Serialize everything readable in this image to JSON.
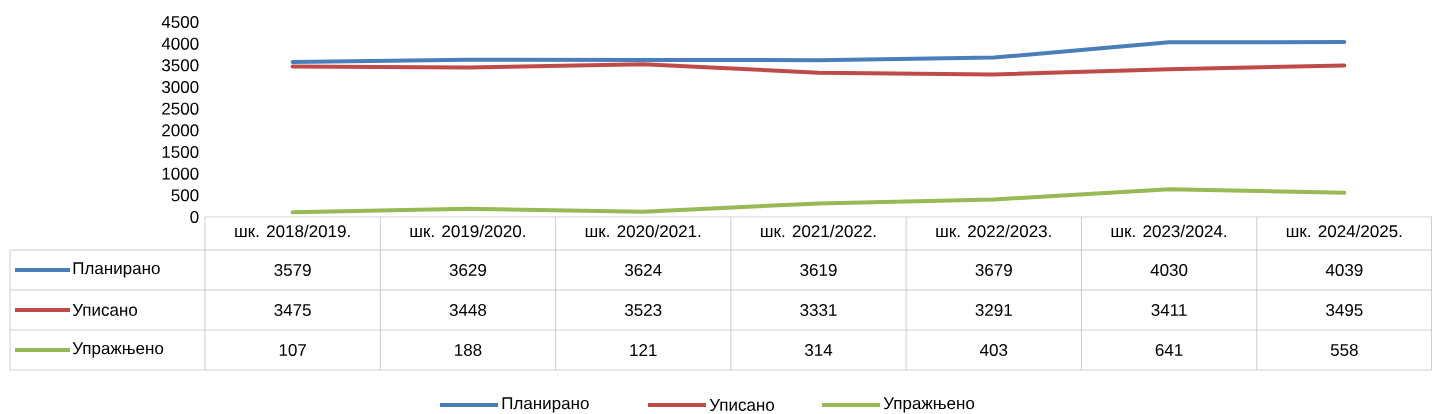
{
  "chart_data": {
    "type": "line",
    "categories": [
      "шк. 2018/2019.",
      "шк. 2019/2020.",
      "шк. 2020/2021.",
      "шк. 2021/2022.",
      "шк. 2022/2023.",
      "шк. 2023/2024.",
      "шк. 2024/2025."
    ],
    "series": [
      {
        "name": "Планирано",
        "color": "#4a7ebb",
        "values": [
          3579,
          3629,
          3624,
          3619,
          3679,
          4030,
          4039
        ],
        "value_labels": [
          "3579",
          "3629",
          "3624",
          "3619",
          "3679",
          "4030",
          "4039"
        ]
      },
      {
        "name": "Уписано",
        "color": "#be4b48",
        "values": [
          3475,
          3448,
          3523,
          3331,
          3291,
          3411,
          3495
        ],
        "value_labels": [
          "3475",
          "3448",
          "3523",
          "3331",
          "3291",
          "3411",
          "3495"
        ]
      },
      {
        "name": "Упражњено",
        "color": "#98b954",
        "values": [
          107,
          188,
          121,
          314,
          403,
          641,
          558
        ],
        "value_labels": [
          "107",
          "188",
          "121",
          "314",
          "403",
          "641",
          "558"
        ]
      }
    ],
    "ylim": [
      0,
      4500
    ],
    "yticks": [
      0,
      500,
      1000,
      1500,
      2000,
      2500,
      3000,
      3500,
      4000,
      4500
    ],
    "legend": "bottom",
    "marker": "none",
    "line_style": "solid"
  }
}
